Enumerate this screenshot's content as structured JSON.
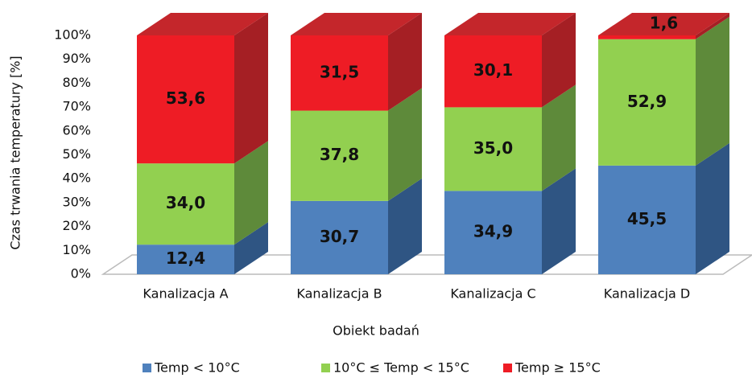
{
  "chart_data": {
    "type": "bar",
    "stacked": true,
    "x_label": "Obiekt badań",
    "y_label": "Czas trwania temperatury  [%]",
    "categories": [
      "Kanalizacja A",
      "Kanalizacja B",
      "Kanalizacja C",
      "Kanalizacja D"
    ],
    "series": [
      {
        "name": "Temp < 10°C",
        "color": "#4f81bd",
        "side_color": "#2f5583",
        "values": [
          12.4,
          30.7,
          34.9,
          45.5
        ],
        "value_labels": [
          "12,4",
          "30,7",
          "34,9",
          "45,5"
        ]
      },
      {
        "name": "10°C ≤ Temp < 15°C",
        "color": "#92d050",
        "side_color": "#5e8a3a",
        "values": [
          34.0,
          37.8,
          35.0,
          52.9
        ],
        "value_labels": [
          "34,0",
          "37,8",
          "35,0",
          "52,9"
        ]
      },
      {
        "name": "Temp ≥ 15°C",
        "color": "#ee1c25",
        "side_color": "#a51f24",
        "top_color": "#c4262b",
        "values": [
          53.6,
          31.5,
          30.1,
          1.6
        ],
        "value_labels": [
          "53,6",
          "31,5",
          "30,1",
          "1,6"
        ]
      }
    ],
    "ylim": [
      0,
      100
    ],
    "yticks": [
      {
        "value": 0,
        "label": "0%"
      },
      {
        "value": 10,
        "label": "10%"
      },
      {
        "value": 20,
        "label": "20%"
      },
      {
        "value": 30,
        "label": "30%"
      },
      {
        "value": 40,
        "label": "40%"
      },
      {
        "value": 50,
        "label": "50%"
      },
      {
        "value": 60,
        "label": "60%"
      },
      {
        "value": 70,
        "label": "70%"
      },
      {
        "value": 80,
        "label": "80%"
      },
      {
        "value": 90,
        "label": "90%"
      },
      {
        "value": 100,
        "label": "100%"
      }
    ]
  }
}
